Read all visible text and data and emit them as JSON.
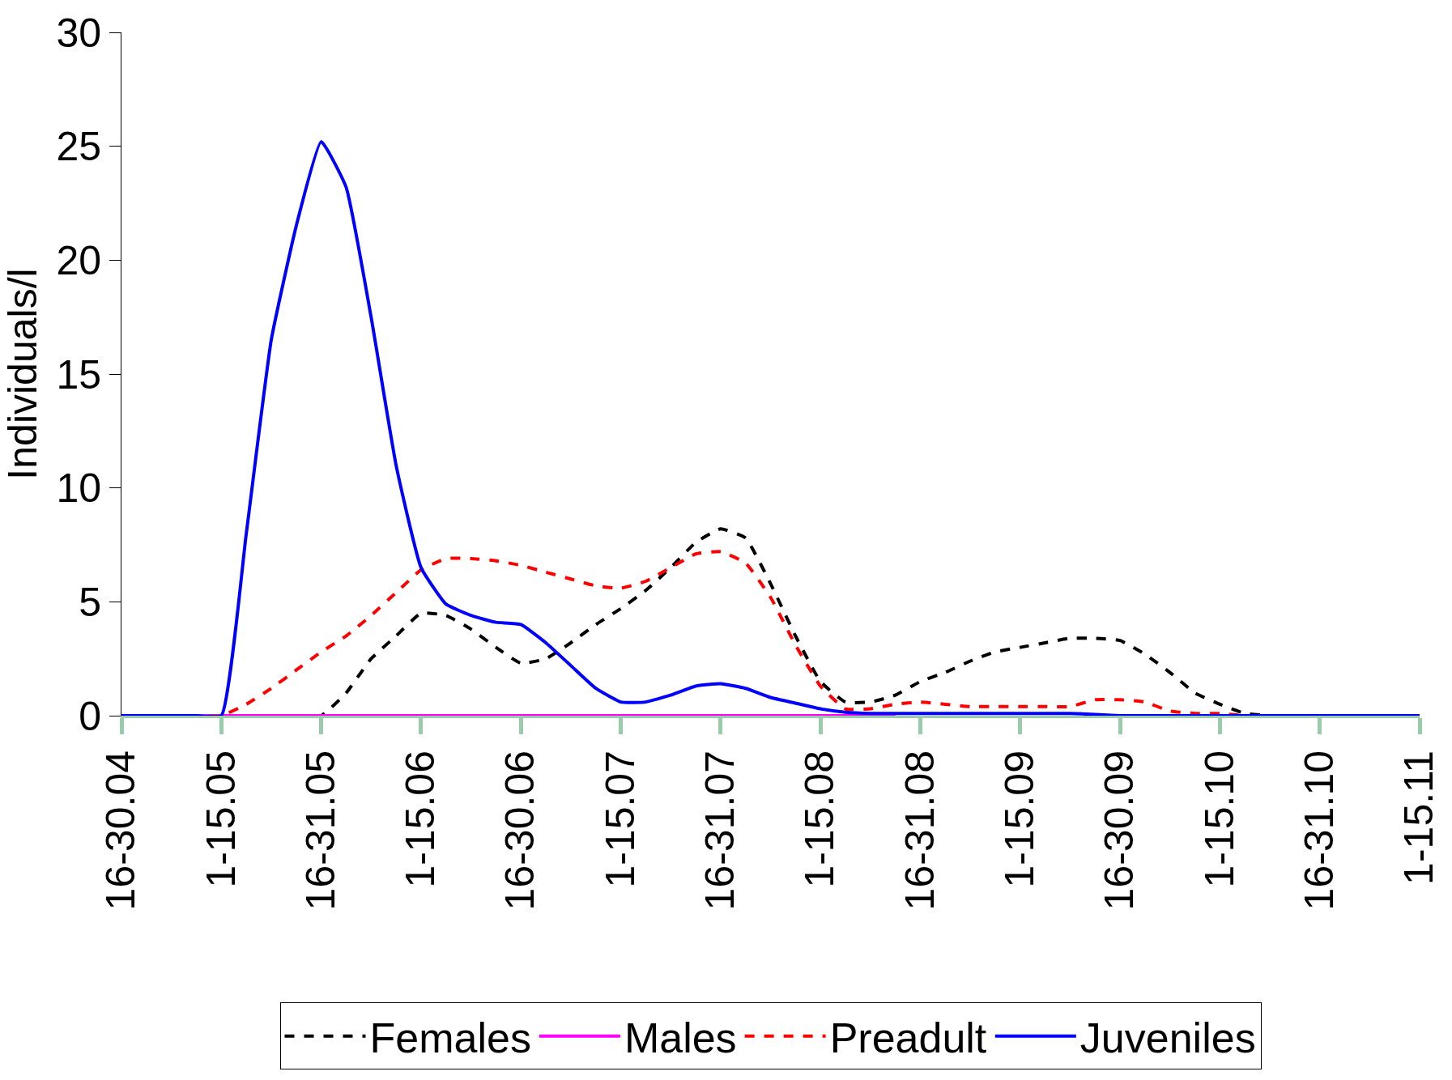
{
  "chart_data": {
    "type": "line",
    "ylabel": "Individuals/l",
    "legend": "bottom",
    "marker": "none",
    "ylim": [
      0,
      30
    ],
    "yticks": [
      0,
      5,
      10,
      15,
      20,
      25,
      30
    ],
    "categories": [
      "16-30.04",
      null,
      null,
      null,
      "1-15.05",
      null,
      null,
      null,
      "16-31.05",
      null,
      null,
      null,
      "1-15.06",
      null,
      null,
      null,
      "16-30.06",
      null,
      null,
      null,
      "1-15.07",
      null,
      null,
      null,
      "16-31.07",
      null,
      null,
      null,
      "1-15.08",
      null,
      null,
      null,
      "16-31.08",
      null,
      null,
      null,
      "1-15.09",
      null,
      null,
      null,
      "16-30.09",
      null,
      null,
      null,
      "1-15.10",
      null,
      null,
      null,
      "16-31.10",
      null,
      null,
      null,
      "1-15.11"
    ],
    "series": [
      {
        "name": "Females",
        "color": "#000000",
        "line_style": "dashed",
        "values": [
          0,
          0,
          0,
          0,
          0,
          0,
          0,
          0,
          0,
          1.0,
          2.5,
          3.5,
          4.5,
          4.4,
          3.8,
          3.0,
          2.3,
          2.5,
          3.2,
          4.0,
          4.7,
          5.5,
          6.5,
          7.6,
          8.2,
          7.8,
          5.8,
          3.5,
          1.5,
          0.6,
          0.6,
          0.9,
          1.5,
          1.9,
          2.4,
          2.8,
          3.0,
          3.2,
          3.4,
          3.4,
          3.3,
          2.7,
          1.9,
          1.0,
          0.5,
          0.1,
          0,
          null,
          null,
          null,
          null,
          null,
          null
        ]
      },
      {
        "name": "Males",
        "color": "#ff00ff",
        "line_style": "solid",
        "values": [
          null,
          null,
          0,
          0,
          0,
          0,
          0,
          0,
          0,
          0,
          0,
          0,
          0,
          0,
          0,
          0,
          0,
          0,
          0,
          0,
          0,
          0,
          0,
          0,
          0,
          0,
          0,
          0,
          0,
          0,
          0,
          0,
          null,
          null,
          null,
          null,
          null,
          null,
          null,
          null,
          null,
          null,
          null,
          null,
          null,
          null,
          null,
          null,
          null,
          null,
          null,
          null,
          null
        ]
      },
      {
        "name": "Preadult",
        "color": "#ff0000",
        "line_style": "dashed",
        "values": [
          null,
          null,
          0,
          0,
          0,
          0.5,
          1.2,
          2.0,
          2.8,
          3.5,
          4.4,
          5.4,
          6.4,
          6.9,
          6.9,
          6.8,
          6.6,
          6.3,
          6.0,
          5.7,
          5.6,
          5.9,
          6.5,
          7.1,
          7.2,
          6.7,
          5.2,
          3.1,
          1.3,
          0.3,
          0.3,
          0.5,
          0.6,
          0.5,
          0.4,
          0.4,
          0.4,
          0.4,
          0.4,
          0.7,
          0.7,
          0.6,
          0.2,
          0.1,
          0.1,
          0,
          null,
          null,
          null,
          null,
          null,
          null,
          null
        ]
      },
      {
        "name": "Juveniles",
        "color": "#0000ff",
        "line_style": "solid",
        "values": [
          0,
          0,
          0,
          0,
          0,
          8,
          16.5,
          21.5,
          25.2,
          23.2,
          17.5,
          11,
          6.5,
          4.9,
          4.4,
          4.1,
          4.0,
          3.2,
          2.2,
          1.2,
          0.6,
          0.6,
          0.9,
          1.3,
          1.4,
          1.2,
          0.8,
          0.55,
          0.3,
          0.15,
          0.1,
          0.1,
          0.1,
          0.1,
          0.1,
          0.1,
          0.1,
          0.1,
          0.1,
          0.05,
          0,
          0,
          0,
          0,
          0,
          0,
          0,
          0,
          0,
          0,
          0,
          0,
          0
        ]
      }
    ]
  }
}
